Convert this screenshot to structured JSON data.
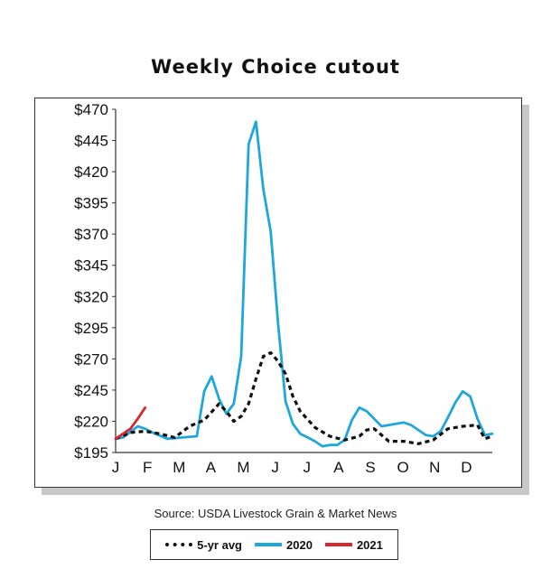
{
  "chart_data": {
    "type": "line",
    "title": "Weekly Choice cutout",
    "xlabel": "",
    "ylabel": "",
    "ylim": [
      195,
      470
    ],
    "y_ticks": [
      "$470",
      "$445",
      "$420",
      "$395",
      "$370",
      "$345",
      "$320",
      "$295",
      "$270",
      "$245",
      "$220",
      "$195"
    ],
    "y_tick_values": [
      470,
      445,
      420,
      395,
      370,
      345,
      320,
      295,
      270,
      245,
      220,
      195
    ],
    "x_ticks": [
      "J",
      "F",
      "M",
      "A",
      "M",
      "J",
      "J",
      "A",
      "S",
      "O",
      "N",
      "D"
    ],
    "x_tick_weeks": [
      1,
      5.3,
      9.6,
      13.9,
      18.3,
      22.6,
      26.9,
      31.2,
      35.5,
      39.9,
      44.2,
      48.5
    ],
    "x_range_weeks": [
      1,
      52
    ],
    "series": [
      {
        "name": "5-yr avg",
        "color": "#111111",
        "style": "dashed",
        "x": [
          1,
          3,
          5,
          7,
          9,
          11,
          13,
          15,
          16,
          17,
          18,
          19,
          20,
          21,
          22,
          23,
          24,
          25,
          26,
          28,
          30,
          32,
          34,
          35,
          36,
          38,
          40,
          42,
          44,
          46,
          48,
          50,
          51,
          52
        ],
        "y": [
          206,
          211,
          212,
          210,
          207,
          216,
          221,
          234,
          228,
          220,
          224,
          234,
          254,
          272,
          275,
          268,
          258,
          240,
          228,
          215,
          208,
          205,
          208,
          213,
          214,
          204,
          204,
          202,
          205,
          214,
          216,
          217,
          206,
          208
        ]
      },
      {
        "name": "2020",
        "color": "#1ea7db",
        "style": "solid",
        "x": [
          1,
          2,
          4,
          5,
          6,
          8,
          10,
          12,
          13,
          14,
          15,
          16,
          17,
          18,
          19,
          20,
          21,
          22,
          23,
          24,
          25,
          26,
          27,
          28,
          29,
          30,
          31,
          32,
          33,
          34,
          35,
          36,
          37,
          38,
          40,
          41,
          42,
          43,
          44,
          45,
          46,
          47,
          48,
          49,
          50,
          51,
          52
        ],
        "y": [
          206,
          207,
          216,
          214,
          211,
          206,
          207,
          208,
          244,
          256,
          238,
          226,
          234,
          272,
          442,
          460,
          406,
          372,
          298,
          236,
          218,
          210,
          207,
          204,
          200,
          201,
          201,
          205,
          221,
          231,
          228,
          222,
          216,
          217,
          219,
          217,
          213,
          209,
          208,
          212,
          223,
          235,
          244,
          240,
          222,
          209,
          210
        ]
      },
      {
        "name": "2021",
        "color": "#d7262f",
        "style": "solid",
        "x": [
          1,
          2,
          3,
          4,
          5
        ],
        "y": [
          206,
          210,
          214,
          222,
          231
        ]
      }
    ],
    "grid": false,
    "legend": "bottom",
    "source": "Source: USDA Livestock Grain & Market News"
  }
}
